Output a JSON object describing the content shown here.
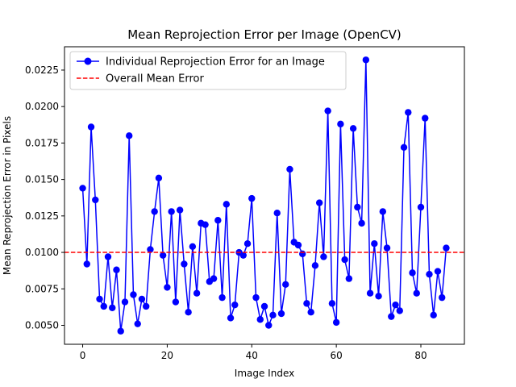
{
  "chart_data": {
    "type": "line",
    "title": "Mean Reprojection Error per Image (OpenCV)",
    "xlabel": "Image Index",
    "ylabel": "Mean Reprojection Error in Pixels",
    "xlim": [
      -4.3,
      90.3
    ],
    "ylim": [
      0.0037,
      0.0241
    ],
    "xticks": [
      0,
      20,
      40,
      60,
      80
    ],
    "yticks": [
      0.005,
      0.0075,
      0.01,
      0.0125,
      0.015,
      0.0175,
      0.02,
      0.0225
    ],
    "ytick_labels": [
      "0.0050",
      "0.0075",
      "0.0100",
      "0.0125",
      "0.0150",
      "0.0175",
      "0.0200",
      "0.0225"
    ],
    "grid": false,
    "legend": "top-left",
    "series": [
      {
        "name": "Individual Reprojection Error for an Image",
        "color": "#0000ff",
        "marker": "circle",
        "x": [
          0,
          1,
          2,
          3,
          4,
          5,
          6,
          7,
          8,
          9,
          10,
          11,
          12,
          13,
          14,
          15,
          16,
          17,
          18,
          19,
          20,
          21,
          22,
          23,
          24,
          25,
          26,
          27,
          28,
          29,
          30,
          31,
          32,
          33,
          34,
          35,
          36,
          37,
          38,
          39,
          40,
          41,
          42,
          43,
          44,
          45,
          46,
          47,
          48,
          49,
          50,
          51,
          52,
          53,
          54,
          55,
          56,
          57,
          58,
          59,
          60,
          61,
          62,
          63,
          64,
          65,
          66,
          67,
          68,
          69,
          70,
          71,
          72,
          73,
          74,
          75,
          76,
          77,
          78,
          79,
          80,
          81,
          82,
          83,
          84,
          85,
          86
        ],
        "y": [
          0.0144,
          0.0092,
          0.0186,
          0.0136,
          0.0068,
          0.0063,
          0.0097,
          0.0062,
          0.0088,
          0.0046,
          0.0066,
          0.018,
          0.0071,
          0.0051,
          0.0068,
          0.0063,
          0.0102,
          0.0128,
          0.0151,
          0.0098,
          0.0076,
          0.0128,
          0.0066,
          0.0129,
          0.0092,
          0.0059,
          0.0104,
          0.0072,
          0.012,
          0.0119,
          0.008,
          0.0082,
          0.0122,
          0.0069,
          0.0133,
          0.0055,
          0.0064,
          0.01,
          0.0098,
          0.0106,
          0.0137,
          0.0069,
          0.0054,
          0.0063,
          0.005,
          0.0057,
          0.0127,
          0.0058,
          0.0078,
          0.0157,
          0.0107,
          0.0105,
          0.0099,
          0.0065,
          0.0059,
          0.0091,
          0.0134,
          0.0097,
          0.0197,
          0.0065,
          0.0052,
          0.0188,
          0.0095,
          0.0082,
          0.0185,
          0.0131,
          0.012,
          0.0232,
          0.0072,
          0.0106,
          0.007,
          0.0128,
          0.0103,
          0.0056,
          0.0064,
          0.006,
          0.0172,
          0.0196,
          0.0086,
          0.0072,
          0.0131,
          0.0192,
          0.0085,
          0.0057,
          0.0087,
          0.0069,
          0.0103
        ]
      },
      {
        "name": "Overall Mean Error",
        "color": "#ff0000",
        "style": "dashed",
        "hline": 0.01
      }
    ]
  }
}
